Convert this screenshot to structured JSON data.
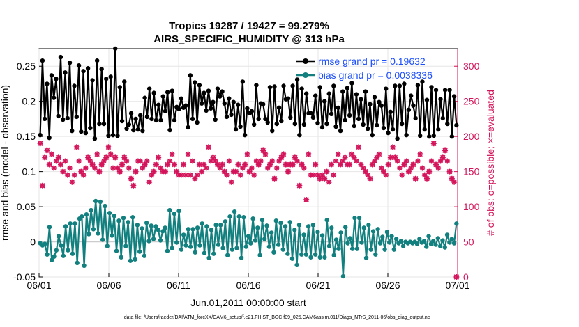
{
  "chart_data": {
    "type": "line",
    "title": "Tropics 19287 / 19427 = 99.279%",
    "subtitle": "AIRS_SPECIFIC_HUMIDITY @ 313 hPa",
    "ylabel_left": "rmse and bias (model - observation)",
    "ylabel_right": "# of obs: o=possible; ×=evaluated",
    "xlabel": "Jun.01,2011 00:00:00 start",
    "footer": "data file: /Users/raeder/DAI/ATM_forcXX/CAM6_setup/f.e21.FHIST_BGC.f09_025.CAM6assim.011/Diags_NTrS_2011-06/obs_diag_output.nc",
    "x_ticks": [
      "06/01",
      "06/06",
      "06/11",
      "06/16",
      "06/21",
      "06/26",
      "07/01"
    ],
    "y_left_ticks": [
      "-0.05",
      "0",
      "0.05",
      "0.1",
      "0.15",
      "0.2",
      "0.25"
    ],
    "y_right_ticks": [
      "0",
      "50",
      "100",
      "150",
      "200",
      "250",
      "300"
    ],
    "ylim_left": [
      -0.05,
      0.275
    ],
    "ylim_right": [
      0,
      325
    ],
    "xlim_days": [
      0,
      30
    ],
    "colors": {
      "rmse": "#000000",
      "bias": "#12807f",
      "obs": "#d4145a",
      "legend_text": "#1a4dff",
      "zero_line": "#cccccc"
    },
    "legend": [
      {
        "name": "rmse",
        "label": "rmse grand pr = 0.19632"
      },
      {
        "name": "bias",
        "label": "bias grand pr = 0.0038336"
      }
    ],
    "series": [
      {
        "name": "rmse",
        "axis": "left",
        "values": [
          0.152,
          0.258,
          0.175,
          0.225,
          0.148,
          0.237,
          0.205,
          0.232,
          0.179,
          0.263,
          0.174,
          0.241,
          0.176,
          0.255,
          0.158,
          0.222,
          0.178,
          0.251,
          0.157,
          0.243,
          0.155,
          0.247,
          0.162,
          0.23,
          0.147,
          0.258,
          0.168,
          0.246,
          0.168,
          0.232,
          0.151,
          0.235,
          0.152,
          0.275,
          0.151,
          0.22,
          0.172,
          0.228,
          0.161,
          0.167,
          0.183,
          0.159,
          0.175,
          0.16,
          0.18,
          0.158,
          0.205,
          0.178,
          0.218,
          0.175,
          0.212,
          0.173,
          0.195,
          0.173,
          0.207,
          0.186,
          0.213,
          0.159,
          0.215,
          0.173,
          0.192,
          0.189,
          0.204,
          0.191,
          0.194,
          0.163,
          0.237,
          0.175,
          0.227,
          0.17,
          0.223,
          0.197,
          0.212,
          0.187,
          0.215,
          0.19,
          0.199,
          0.174,
          0.218,
          0.207,
          0.214,
          0.197,
          0.178,
          0.204,
          0.181,
          0.199,
          0.16,
          0.195,
          0.164,
          0.228,
          0.152,
          0.19,
          0.183,
          0.186,
          0.167,
          0.223,
          0.175,
          0.197,
          0.196,
          0.175,
          0.17,
          0.22,
          0.158,
          0.221,
          0.168,
          0.191,
          0.172,
          0.222,
          0.203,
          0.204,
          0.177,
          0.222,
          0.168,
          0.231,
          0.152,
          0.218,
          0.167,
          0.211,
          0.183,
          0.183,
          0.177,
          0.208,
          0.169,
          0.22,
          0.163,
          0.2,
          0.168,
          0.211,
          0.182,
          0.222,
          0.164,
          0.191,
          0.158,
          0.214,
          0.173,
          0.219,
          0.18,
          0.226,
          0.165,
          0.21,
          0.175,
          0.203,
          0.167,
          0.214,
          0.161,
          0.196,
          0.152,
          0.206,
          0.166,
          0.199,
          0.194,
          0.162,
          0.218,
          0.155,
          0.185,
          0.16,
          0.222,
          0.147,
          0.222,
          0.168,
          0.225,
          0.152,
          0.188,
          0.208,
          0.194,
          0.176,
          0.223,
          0.151,
          0.228,
          0.16,
          0.202,
          0.15,
          0.22,
          0.151,
          0.216,
          0.16,
          0.203,
          0.176,
          0.216,
          0.168,
          0.216,
          0.15,
          0.207,
          0.166
        ]
      },
      {
        "name": "bias",
        "axis": "left",
        "values": [
          -0.002,
          -0.005,
          -0.003,
          -0.018,
          0.021,
          -0.026,
          -0.021,
          -0.012,
          0.008,
          -0.005,
          -0.02,
          0.022,
          -0.012,
          0.026,
          -0.017,
          0.026,
          -0.03,
          0.033,
          0.036,
          -0.034,
          0.039,
          0.011,
          0.045,
          0.018,
          0.058,
          0.012,
          0.057,
          0.003,
          0.051,
          -0.006,
          0.041,
          0.009,
          0.037,
          -0.013,
          0.03,
          -0.022,
          0.034,
          -0.006,
          0.028,
          -0.027,
          0.035,
          -0.025,
          0.024,
          -0.014,
          0.019,
          -0.02,
          0.027,
          0.001,
          0.023,
          0.004,
          0.022,
          0.017,
          0.002,
          0.015,
          0.02,
          -0.013,
          0.045,
          -0.009,
          0.04,
          -0.001,
          0.044,
          -0.011,
          0.01,
          -0.005,
          0.018,
          -0.007,
          0.018,
          -0.015,
          0.02,
          -0.005,
          0.026,
          -0.016,
          0.022,
          -0.023,
          0.017,
          -0.017,
          0.024,
          -0.004,
          0.024,
          -0.009,
          0.029,
          -0.019,
          0.036,
          -0.011,
          0.043,
          -0.009,
          0.036,
          -0.023,
          0.035,
          -0.007,
          0.008,
          -0.002,
          0.033,
          0.002,
          0.02,
          -0.019,
          0.031,
          0.004,
          0.023,
          -0.007,
          0.013,
          -0.015,
          0.03,
          -0.004,
          0.027,
          -0.011,
          0.022,
          -0.017,
          0.028,
          -0.024,
          0.017,
          -0.033,
          0.024,
          -0.018,
          0.01,
          -0.018,
          0.022,
          -0.022,
          0.024,
          -0.018,
          0.014,
          -0.022,
          0.009,
          -0.022,
          0.031,
          -0.006,
          0.02,
          -0.019,
          0.003,
          -0.01,
          0.013,
          -0.049,
          0.021,
          -0.002,
          0.005,
          -0.01,
          0.034,
          -0.01,
          0.034,
          -0.001,
          0.02,
          -0.023,
          0.024,
          -0.011,
          0.015,
          -0.018,
          0.018,
          -0.002,
          0.007,
          -0.011,
          0.014,
          -0.001,
          0.008,
          -0.011,
          0.004,
          -0.002,
          0.001,
          -0.006,
          0.0,
          -0.002,
          0.0,
          -0.002,
          0.0,
          -0.003,
          0.004,
          -0.001,
          0.001,
          -0.007,
          0.008,
          -0.003,
          0.001,
          -0.004,
          0.005,
          -0.006,
          0.002,
          -0.008,
          0.01,
          -0.001,
          0.004,
          -0.002,
          0.026
        ]
      },
      {
        "name": "obs_possible",
        "axis": "right",
        "marker": "o",
        "values": [
          190,
          130,
          170,
          180,
          160,
          175,
          155,
          165,
          170,
          160,
          150,
          165,
          145,
          155,
          135,
          145,
          185,
          165,
          150,
          145,
          155,
          170,
          165,
          160,
          155,
          175,
          150,
          160,
          165,
          170,
          185,
          175,
          155,
          170,
          155,
          150,
          160,
          170,
          165,
          155,
          140,
          130,
          150,
          165,
          165,
          155,
          160,
          165,
          135,
          145,
          150,
          160,
          170,
          155,
          150,
          150,
          160,
          165,
          175,
          160,
          150,
          145,
          145,
          160,
          145,
          175,
          145,
          165,
          140,
          145,
          160,
          150,
          160,
          155,
          185,
          165,
          170,
          165,
          160,
          155,
          160,
          150,
          145,
          165,
          135,
          150,
          150,
          160,
          145,
          155,
          160,
          175,
          150,
          155,
          145,
          165,
          160,
          165,
          180,
          175,
          155,
          160,
          165,
          140,
          155,
          165,
          170,
          175,
          160,
          150,
          160,
          160,
          170,
          165,
          130,
          160,
          155,
          110,
          175,
          145,
          145,
          160,
          145,
          140,
          145,
          140,
          150,
          135,
          160,
          145,
          165,
          175,
          160,
          165,
          170,
          160,
          160,
          175,
          170,
          165,
          185,
          160,
          155,
          150,
          145,
          140,
          160,
          165,
          170,
          175,
          155,
          150,
          145,
          160,
          170,
          185,
          170,
          165,
          155,
          145,
          160,
          165,
          150,
          155,
          160,
          140,
          165,
          175,
          155,
          145,
          140,
          150,
          165,
          190,
          160,
          155,
          165,
          170,
          180,
          165,
          150,
          140,
          135,
          0
        ]
      },
      {
        "name": "obs_evaluated",
        "axis": "right",
        "marker": "x",
        "values": [
          190,
          130,
          170,
          180,
          160,
          175,
          155,
          165,
          170,
          160,
          150,
          165,
          145,
          155,
          135,
          145,
          185,
          165,
          150,
          145,
          155,
          170,
          165,
          160,
          155,
          175,
          150,
          160,
          165,
          170,
          185,
          175,
          155,
          170,
          155,
          150,
          160,
          170,
          165,
          155,
          140,
          130,
          150,
          165,
          165,
          155,
          160,
          165,
          135,
          145,
          150,
          160,
          170,
          155,
          150,
          150,
          160,
          165,
          175,
          160,
          150,
          145,
          145,
          160,
          145,
          175,
          145,
          165,
          140,
          145,
          160,
          150,
          160,
          155,
          185,
          165,
          170,
          165,
          160,
          155,
          160,
          150,
          145,
          165,
          135,
          150,
          150,
          160,
          145,
          155,
          160,
          175,
          150,
          155,
          145,
          165,
          160,
          165,
          180,
          175,
          155,
          160,
          165,
          140,
          155,
          165,
          170,
          175,
          160,
          150,
          160,
          160,
          170,
          165,
          130,
          160,
          155,
          110,
          175,
          145,
          145,
          160,
          145,
          140,
          145,
          140,
          150,
          135,
          160,
          145,
          165,
          175,
          160,
          165,
          170,
          160,
          160,
          175,
          170,
          165,
          185,
          160,
          155,
          150,
          145,
          140,
          160,
          165,
          170,
          175,
          155,
          150,
          145,
          160,
          170,
          185,
          170,
          165,
          155,
          145,
          160,
          165,
          150,
          155,
          160,
          140,
          165,
          175,
          155,
          145,
          140,
          150,
          165,
          190,
          160,
          155,
          165,
          170,
          180,
          165,
          150,
          140,
          135,
          0
        ]
      }
    ]
  }
}
